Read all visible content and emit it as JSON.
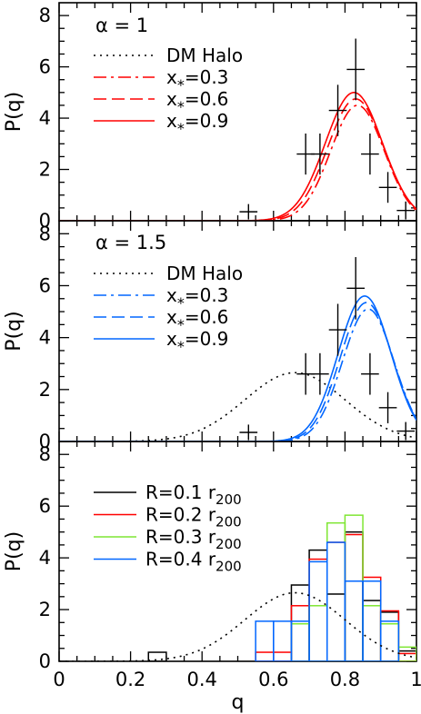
{
  "colors": {
    "red": "#ff0000",
    "blue": "#0066ff",
    "green": "#7fe633",
    "black": "#000000"
  },
  "chart_data": [
    {
      "type": "line",
      "panel": "top",
      "title": "α = 1",
      "xlabel": "",
      "ylabel": "P(q)",
      "xlim": [
        0,
        1
      ],
      "ylim": [
        0,
        8.5
      ],
      "yticks": [
        "0",
        "2",
        "4",
        "6",
        "8"
      ],
      "legend": [
        {
          "label": "DM Halo",
          "style": "dotted",
          "color": "#000000"
        },
        {
          "label": "x*=0.3",
          "style": "dashdot",
          "color": "#ff0000"
        },
        {
          "label": "x*=0.6",
          "style": "dashed",
          "color": "#ff0000"
        },
        {
          "label": "x*=0.9",
          "style": "solid",
          "color": "#ff0000"
        }
      ],
      "curves": [
        {
          "name": "x*=0.3",
          "style": "dashdot",
          "color": "#ff0000",
          "mu": 0.835,
          "sigma": 0.075,
          "peak": 4.5
        },
        {
          "name": "x*=0.6",
          "style": "dashed",
          "color": "#ff0000",
          "mu": 0.83,
          "sigma": 0.078,
          "peak": 4.75
        },
        {
          "name": "x*=0.9",
          "style": "solid",
          "color": "#ff0000",
          "mu": 0.825,
          "sigma": 0.08,
          "peak": 5.0
        }
      ],
      "points": [
        {
          "x": 0.53,
          "y": 0.35,
          "xerr": 0.025,
          "yerr": 0.3
        },
        {
          "x": 0.69,
          "y": 2.6,
          "xerr": 0.025,
          "yerr": 0.8
        },
        {
          "x": 0.73,
          "y": 2.6,
          "xerr": 0.025,
          "yerr": 0.8
        },
        {
          "x": 0.78,
          "y": 4.3,
          "xerr": 0.025,
          "yerr": 1.0
        },
        {
          "x": 0.83,
          "y": 5.9,
          "xerr": 0.025,
          "yerr": 1.2
        },
        {
          "x": 0.87,
          "y": 2.6,
          "xerr": 0.025,
          "yerr": 0.8
        },
        {
          "x": 0.92,
          "y": 1.3,
          "xerr": 0.025,
          "yerr": 0.6
        },
        {
          "x": 0.97,
          "y": 0.4,
          "xerr": 0.025,
          "yerr": 0.35
        }
      ]
    },
    {
      "type": "line",
      "panel": "middle",
      "title": "α = 1.5",
      "xlabel": "",
      "ylabel": "P(q)",
      "xlim": [
        0,
        1
      ],
      "ylim": [
        0,
        8.5
      ],
      "yticks": [
        "0",
        "2",
        "4",
        "6",
        "8"
      ],
      "legend": [
        {
          "label": "DM Halo",
          "style": "dotted",
          "color": "#000000"
        },
        {
          "label": "x*=0.3",
          "style": "dashdot",
          "color": "#0066ff"
        },
        {
          "label": "x*=0.6",
          "style": "dashed",
          "color": "#0066ff"
        },
        {
          "label": "x*=0.9",
          "style": "solid",
          "color": "#0066ff"
        }
      ],
      "curves": [
        {
          "name": "DM Halo",
          "style": "dotted",
          "color": "#000000",
          "mu": 0.66,
          "sigma": 0.14,
          "peak": 2.65
        },
        {
          "name": "x*=0.3",
          "style": "dashdot",
          "color": "#0066ff",
          "mu": 0.865,
          "sigma": 0.072,
          "peak": 5.1
        },
        {
          "name": "x*=0.6",
          "style": "dashed",
          "color": "#0066ff",
          "mu": 0.86,
          "sigma": 0.073,
          "peak": 5.35
        },
        {
          "name": "x*=0.9",
          "style": "solid",
          "color": "#0066ff",
          "mu": 0.855,
          "sigma": 0.074,
          "peak": 5.6
        }
      ],
      "points": [
        {
          "x": 0.53,
          "y": 0.35,
          "xerr": 0.025,
          "yerr": 0.3
        },
        {
          "x": 0.69,
          "y": 2.6,
          "xerr": 0.025,
          "yerr": 0.8
        },
        {
          "x": 0.73,
          "y": 2.6,
          "xerr": 0.025,
          "yerr": 0.8
        },
        {
          "x": 0.78,
          "y": 4.3,
          "xerr": 0.025,
          "yerr": 1.0
        },
        {
          "x": 0.83,
          "y": 5.9,
          "xerr": 0.025,
          "yerr": 1.2
        },
        {
          "x": 0.87,
          "y": 2.6,
          "xerr": 0.025,
          "yerr": 0.8
        },
        {
          "x": 0.92,
          "y": 1.3,
          "xerr": 0.025,
          "yerr": 0.6
        },
        {
          "x": 0.97,
          "y": 0.4,
          "xerr": 0.025,
          "yerr": 0.35
        }
      ]
    },
    {
      "type": "bar",
      "panel": "bottom",
      "title": "",
      "xlabel": "q",
      "ylabel": "P(q)",
      "xlim": [
        0,
        1
      ],
      "ylim": [
        0,
        8.5
      ],
      "yticks": [
        "0",
        "2",
        "4",
        "6",
        "8"
      ],
      "xticks": [
        "0",
        "0.2",
        "0.4",
        "0.6",
        "0.8",
        "1"
      ],
      "bin_edges": [
        0.0,
        0.05,
        0.1,
        0.15,
        0.2,
        0.25,
        0.3,
        0.35,
        0.4,
        0.45,
        0.5,
        0.55,
        0.6,
        0.65,
        0.7,
        0.75,
        0.8,
        0.85,
        0.9,
        0.95,
        1.0
      ],
      "legend": [
        {
          "label": "R=0.1 r200",
          "color": "#000000"
        },
        {
          "label": "R=0.2 r200",
          "color": "#ff0000"
        },
        {
          "label": "R=0.3 r200",
          "color": "#7fe633"
        },
        {
          "label": "R=0.4 r200",
          "color": "#0066ff"
        }
      ],
      "series": [
        {
          "name": "R=0.1 r200",
          "color": "#000000",
          "values": [
            0,
            0,
            0,
            0,
            0,
            0.35,
            0,
            0,
            0,
            0,
            0,
            0,
            0,
            2.95,
            4.3,
            2.6,
            5.0,
            2.35,
            1.9,
            0.4
          ]
        },
        {
          "name": "R=0.2 r200",
          "color": "#ff0000",
          "values": [
            0,
            0,
            0,
            0,
            0,
            0,
            0,
            0,
            0,
            0,
            0,
            0.35,
            0.35,
            2.15,
            3.95,
            4.6,
            4.9,
            3.25,
            1.95,
            0.3
          ]
        },
        {
          "name": "R=0.3 r200",
          "color": "#7fe633",
          "values": [
            0,
            0,
            0,
            0,
            0,
            0,
            0,
            0,
            0,
            0,
            0,
            0,
            0,
            1.45,
            2.15,
            5.35,
            5.65,
            2.15,
            1.45,
            0.55
          ]
        },
        {
          "name": "R=0.4 r200",
          "color": "#0066ff",
          "values": [
            0,
            0,
            0,
            0,
            0,
            0,
            0,
            0,
            0,
            0,
            0,
            1.55,
            1.55,
            1.55,
            3.85,
            4.6,
            3.1,
            3.1,
            1.55,
            0
          ]
        }
      ],
      "curves": [
        {
          "name": "DM Halo",
          "style": "dotted",
          "color": "#000000",
          "mu": 0.66,
          "sigma": 0.14,
          "peak": 2.65
        }
      ]
    }
  ]
}
